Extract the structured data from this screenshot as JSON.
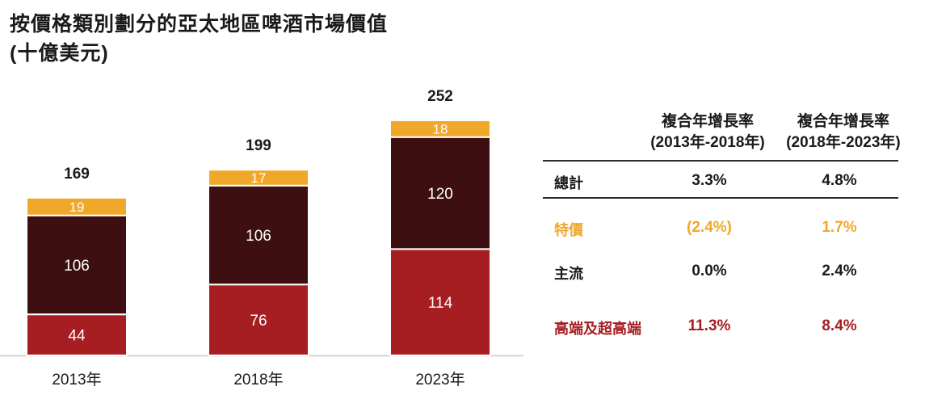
{
  "chart_data": {
    "type": "bar",
    "stacked": true,
    "title": "按價格類別劃分的亞太地區啤酒市場價值",
    "subtitle": "(十億美元)",
    "categories": [
      "2013年",
      "2018年",
      "2023年"
    ],
    "series": [
      {
        "name": "高端及超高端",
        "values": [
          44,
          76,
          114
        ],
        "color": "#a61e22"
      },
      {
        "name": "主流",
        "values": [
          106,
          106,
          120
        ],
        "color": "#3d0f10"
      },
      {
        "name": "特價",
        "values": [
          19,
          17,
          18
        ],
        "color": "#f0a82a"
      }
    ],
    "totals": [
      169,
      199,
      252
    ]
  },
  "table": {
    "headers": [
      {
        "line1": "複合年增長率",
        "line2": "(2013年-2018年)"
      },
      {
        "line1": "複合年增長率",
        "line2": "(2018年-2023年)"
      }
    ],
    "rows": [
      {
        "label": "總計",
        "v1": "3.3%",
        "v2": "4.8%",
        "color": "#1a1a1a"
      },
      {
        "label": "特價",
        "v1": "(2.4%)",
        "v2": "1.7%",
        "color": "#f0a82a"
      },
      {
        "label": "主流",
        "v1": "0.0%",
        "v2": "2.4%",
        "color": "#1a1a1a"
      },
      {
        "label": "高端及超高端",
        "v1": "11.3%",
        "v2": "8.4%",
        "color": "#a61e22"
      }
    ]
  }
}
